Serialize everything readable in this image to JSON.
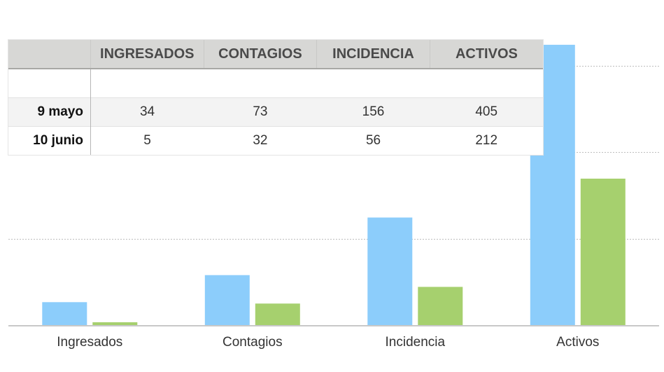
{
  "chart_data": {
    "type": "bar",
    "categories": [
      "Ingresados",
      "Contagios",
      "Incidencia",
      "Activos"
    ],
    "series": [
      {
        "name": "9 mayo",
        "values": [
          34,
          73,
          156,
          405
        ],
        "color": "#8ccdfb"
      },
      {
        "name": "10 junio",
        "values": [
          5,
          32,
          56,
          212
        ],
        "color": "#a6d06e"
      }
    ],
    "ylim": [
      0,
      420
    ],
    "grid_values": [
      125,
      250,
      375
    ],
    "grid": "dotted horizontal",
    "legend": "table-top-left"
  },
  "table": {
    "headers": [
      "INGRESADOS",
      "CONTAGIOS",
      "INCIDENCIA",
      "ACTIVOS"
    ],
    "rows": [
      {
        "label": "9 mayo",
        "values": [
          "34",
          "73",
          "156",
          "405"
        ]
      },
      {
        "label": "10 junio",
        "values": [
          "5",
          "32",
          "56",
          "212"
        ]
      }
    ]
  }
}
